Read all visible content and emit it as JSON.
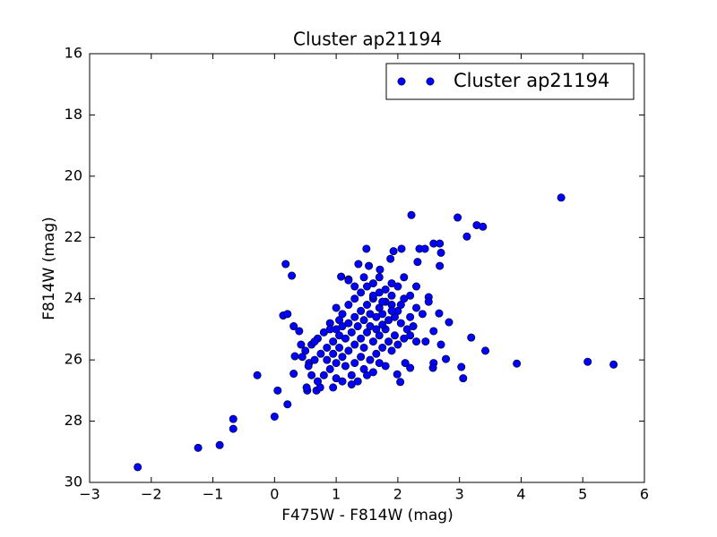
{
  "chart_data": {
    "type": "scatter",
    "title": "Cluster ap21194",
    "xlabel": "F475W - F814W (mag)",
    "ylabel": "F814W (mag)",
    "legend": "upper right",
    "xlim": [
      -3,
      6
    ],
    "ylim": [
      30,
      16
    ],
    "xticks": [
      {
        "value": -3,
        "label": "−3"
      },
      {
        "value": -2,
        "label": "−2"
      },
      {
        "value": -1,
        "label": "−1"
      },
      0,
      1,
      2,
      3,
      4,
      5,
      6
    ],
    "yticks": [
      16,
      18,
      20,
      22,
      24,
      26,
      28,
      30
    ],
    "series": [
      {
        "name": "Cluster ap21194",
        "color": "#0000ff",
        "x": [
          -2.22,
          -1.24,
          -0.89,
          -0.67,
          -0.67,
          -0.28,
          0.0,
          0.05,
          0.21,
          0.18,
          0.28,
          0.14,
          0.21,
          4.65,
          2.22,
          2.97,
          3.12,
          3.28,
          3.38,
          3.93,
          5.08,
          5.5,
          3.42,
          3.19,
          3.03,
          3.06,
          2.78,
          2.7,
          2.58,
          2.83,
          2.67,
          2.5,
          2.68,
          2.7,
          2.58,
          2.35,
          2.44,
          2.68,
          2.32,
          2.06,
          1.49,
          1.88,
          1.93,
          2.58,
          2.57,
          2.2,
          2.12,
          2.04,
          1.99,
          0.68,
          0.53,
          0.74,
          0.52,
          0.31,
          0.33,
          0.43,
          0.4,
          0.56,
          0.31,
          1.08,
          1.2,
          1.36,
          1.53,
          1.71,
          1.0,
          1.1,
          1.2,
          1.3,
          1.4,
          1.5,
          1.6,
          1.7,
          1.8,
          1.9,
          2.0,
          2.1,
          2.2,
          2.3,
          2.4,
          2.2,
          2.0,
          1.9,
          1.8,
          1.7,
          1.6,
          1.5,
          1.4,
          1.3,
          1.2,
          1.1,
          1.0,
          0.9,
          0.8,
          0.7,
          0.6,
          0.5,
          0.45,
          0.55,
          0.65,
          0.75,
          0.85,
          0.95,
          1.05,
          1.15,
          1.25,
          1.35,
          1.45,
          1.55,
          1.65,
          1.75,
          1.85,
          1.95,
          2.05,
          2.15,
          2.25,
          2.1,
          1.95,
          1.8,
          1.7,
          1.6,
          1.5,
          1.4,
          1.3,
          1.2,
          1.1,
          1.0,
          0.9,
          0.8,
          0.7,
          0.85,
          0.95,
          1.05,
          1.15,
          1.25,
          1.35,
          1.45,
          1.55,
          1.65,
          1.75,
          1.85,
          1.9,
          2.0,
          1.7,
          1.6,
          1.3,
          1.4,
          1.0,
          0.9,
          0.65,
          0.6,
          1.2,
          1.3,
          1.45,
          1.7,
          1.9,
          2.1,
          2.3,
          2.2,
          1.1,
          0.95,
          1.25,
          1.5,
          1.8,
          2.3,
          2.5,
          2.45,
          1.55,
          1.65,
          1.75,
          1.45,
          1.05,
          1.9,
          2.05,
          1.6,
          1.75
        ],
        "values": [
          29.5,
          28.87,
          28.78,
          27.93,
          28.25,
          26.5,
          27.85,
          27.0,
          27.45,
          22.87,
          23.25,
          24.55,
          24.5,
          20.7,
          21.27,
          21.35,
          21.97,
          21.6,
          21.65,
          26.12,
          26.06,
          26.15,
          25.7,
          25.27,
          26.23,
          26.6,
          25.97,
          25.5,
          25.06,
          24.77,
          24.48,
          23.95,
          22.93,
          22.5,
          22.2,
          22.37,
          22.37,
          22.2,
          22.8,
          22.37,
          22.37,
          22.7,
          22.45,
          26.1,
          26.26,
          26.26,
          26.1,
          26.72,
          26.47,
          27.0,
          27.0,
          26.9,
          26.9,
          26.45,
          25.88,
          25.5,
          25.06,
          26.1,
          24.9,
          23.28,
          23.37,
          22.87,
          22.93,
          23.05,
          24.3,
          24.5,
          24.2,
          24.0,
          23.8,
          23.6,
          23.5,
          23.8,
          23.7,
          23.9,
          23.6,
          24.0,
          23.9,
          24.3,
          24.5,
          24.6,
          24.4,
          24.2,
          24.1,
          24.3,
          24.0,
          24.2,
          24.4,
          24.6,
          24.8,
          24.9,
          25.0,
          24.8,
          25.1,
          25.3,
          25.5,
          25.7,
          25.9,
          26.2,
          26.0,
          25.8,
          25.6,
          25.4,
          25.2,
          25.3,
          25.1,
          24.9,
          24.7,
          24.5,
          24.6,
          24.5,
          24.7,
          24.6,
          24.8,
          25.0,
          24.9,
          25.3,
          25.2,
          25.0,
          25.2,
          25.4,
          25.1,
          25.3,
          25.5,
          25.7,
          25.9,
          26.1,
          26.3,
          26.5,
          26.7,
          26.0,
          25.8,
          25.6,
          26.2,
          26.5,
          26.7,
          26.3,
          26.0,
          25.8,
          25.6,
          25.4,
          25.7,
          25.5,
          26.1,
          26.4,
          26.1,
          25.9,
          26.6,
          25.0,
          25.4,
          26.5,
          23.4,
          23.6,
          23.3,
          23.3,
          23.5,
          23.3,
          23.6,
          25.2,
          26.7,
          26.9,
          26.8,
          26.5,
          26.2,
          25.4,
          24.1,
          25.4,
          24.9,
          25.0,
          24.85,
          25.6,
          24.7,
          24.4,
          24.2,
          23.9,
          24.1
        ]
      }
    ]
  }
}
